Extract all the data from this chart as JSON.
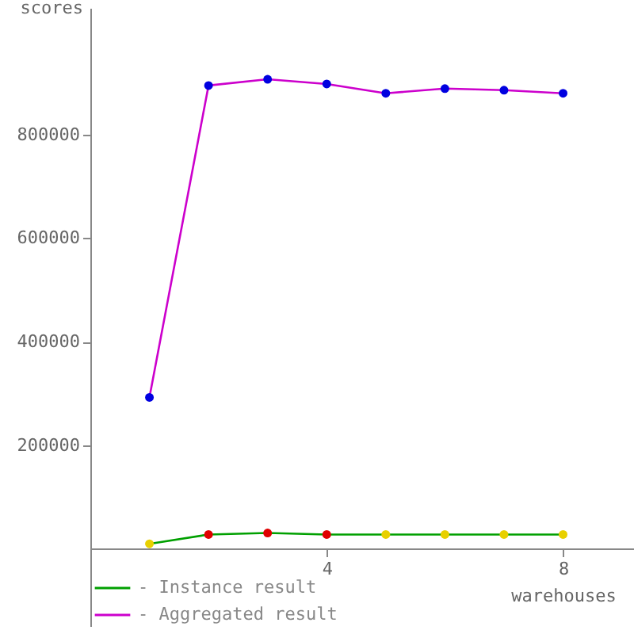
{
  "chart_data": {
    "type": "line",
    "xlabel": "warehouses",
    "ylabel": "scores",
    "x": [
      1,
      2,
      3,
      4,
      5,
      6,
      7,
      8
    ],
    "series": [
      {
        "name": "- Instance result",
        "color": "#00a000",
        "colors": [
          "#e8d000",
          "#e00000",
          "#e00000",
          "#e00000",
          "#e8d000",
          "#e8d000",
          "#e8d000",
          "#e8d000"
        ],
        "values": [
          9000,
          27000,
          30000,
          27000,
          27000,
          27000,
          27000,
          27000
        ]
      },
      {
        "name": "- Aggregated result",
        "color": "#cc00cc",
        "colors": [
          "#0000e0",
          "#0000e0",
          "#0000e0",
          "#0000e0",
          "#0000e0",
          "#0000e0",
          "#0000e0",
          "#0000e0"
        ],
        "values": [
          292000,
          895000,
          907000,
          898000,
          880000,
          889000,
          886000,
          880000
        ]
      }
    ],
    "xlim": [
      0,
      9.2
    ],
    "xticks": [
      4,
      8
    ],
    "ylim": [
      -150000,
      1045000
    ],
    "yticks": [
      200000,
      400000,
      600000,
      800000
    ],
    "grid": false,
    "legend": "bottom left",
    "marker": "circle"
  }
}
